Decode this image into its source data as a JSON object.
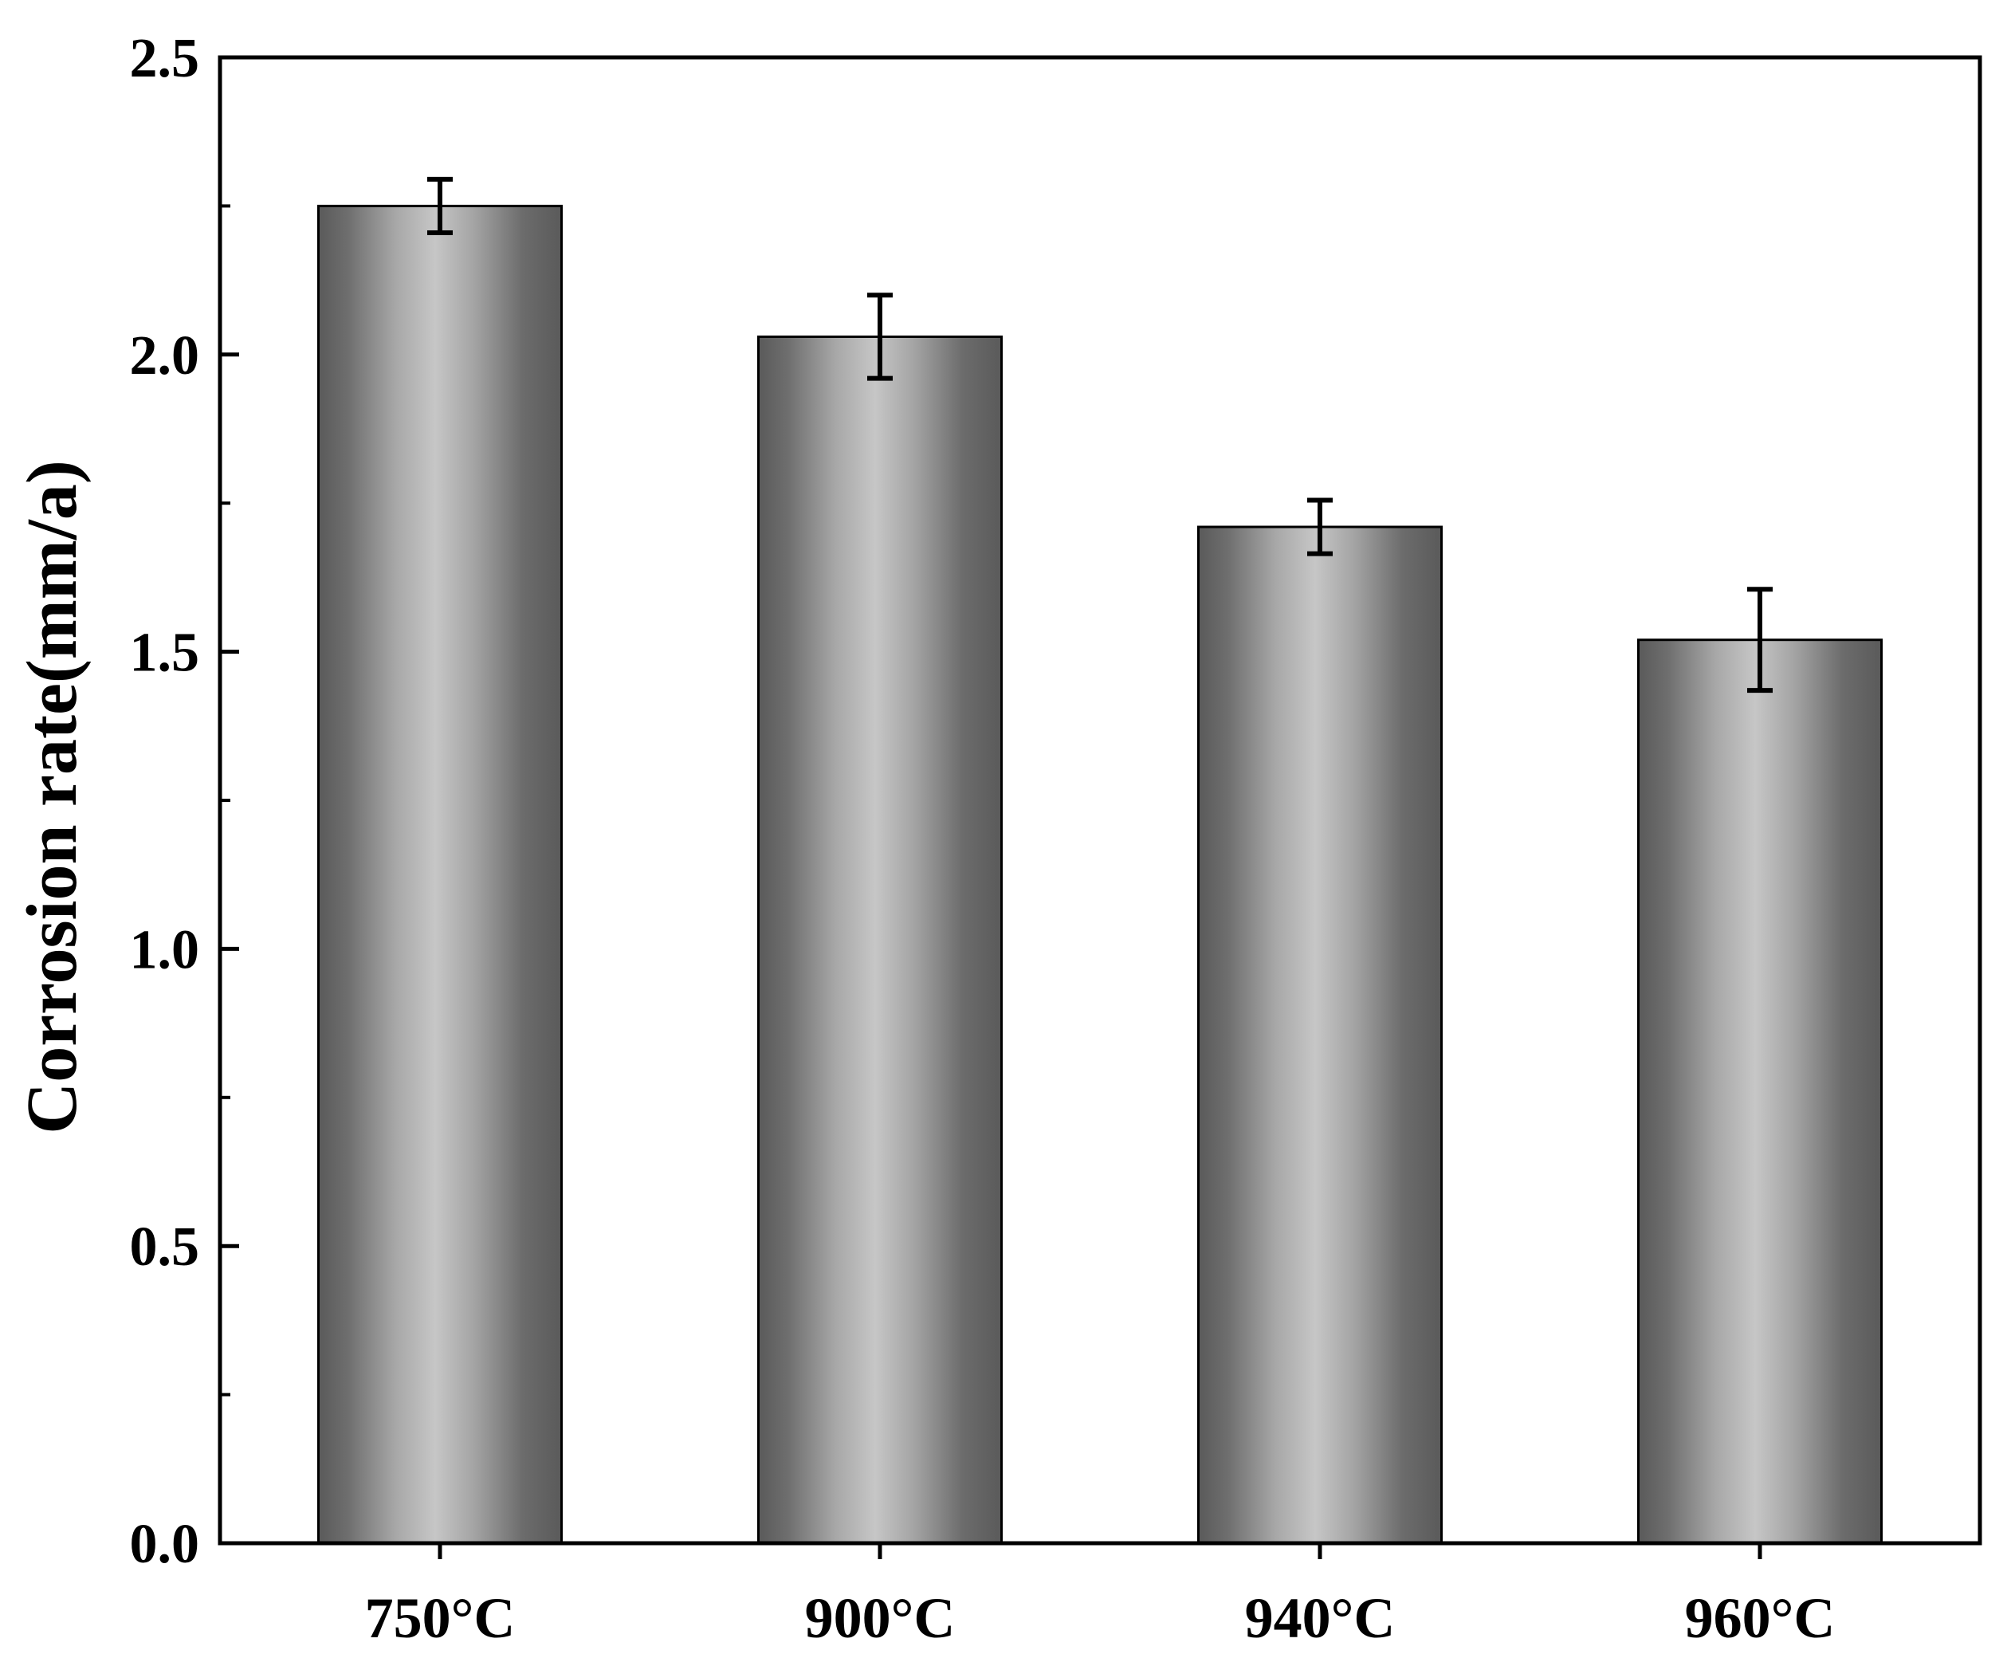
{
  "chart_data": {
    "type": "bar",
    "categories": [
      "750°C",
      "900°C",
      "940°C",
      "960°C"
    ],
    "values": [
      2.25,
      2.03,
      1.71,
      1.52
    ],
    "errors": [
      0.045,
      0.07,
      0.045,
      0.085
    ],
    "title": "",
    "xlabel": "",
    "ylabel": "Corrosion rate(mm/a)",
    "ylim": [
      0,
      2.5
    ],
    "y_ticks": [
      "0.0",
      "0.5",
      "1.0",
      "1.5",
      "2.0",
      "2.5"
    ],
    "grid": false,
    "legend": "none",
    "bar_colors": {
      "dark": "#5a5a5a",
      "light": "#c4c4c4",
      "outline": "#000000"
    }
  }
}
